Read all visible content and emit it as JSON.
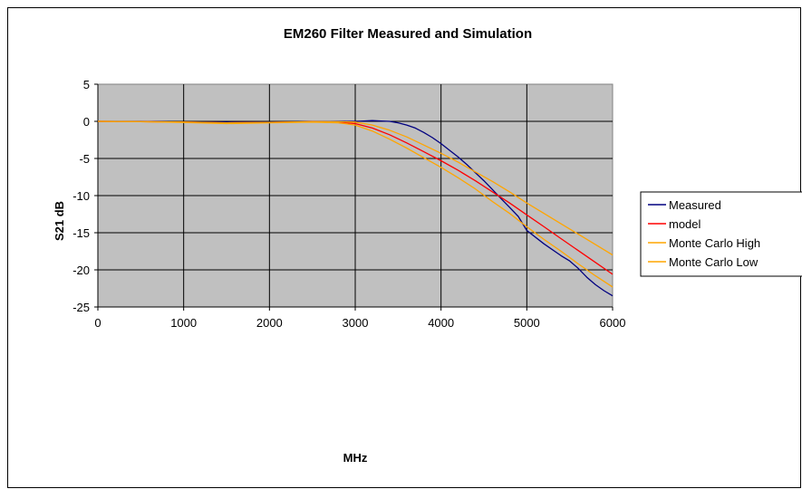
{
  "chart_data": {
    "type": "line",
    "title": "EM260 Filter Measured and Simulation",
    "xlabel": "MHz",
    "ylabel": "S21 dB",
    "xlim": [
      0,
      6000
    ],
    "ylim": [
      -25,
      5
    ],
    "x_ticks": [
      "0",
      "1000",
      "2000",
      "3000",
      "4000",
      "5000",
      "6000"
    ],
    "y_ticks": [
      "5",
      "0",
      "-5",
      "-10",
      "-15",
      "-20",
      "-25"
    ],
    "grid": true,
    "plot_background": "#c0c0c0",
    "legend_position": "right",
    "series": [
      {
        "name": "Measured",
        "color": "#000080",
        "x": [
          0,
          500,
          1000,
          1500,
          2000,
          2500,
          2800,
          3000,
          3100,
          3200,
          3300,
          3400,
          3500,
          3600,
          3700,
          3800,
          3900,
          4000,
          4100,
          4200,
          4300,
          4400,
          4500,
          4600,
          4700,
          4800,
          4900,
          5000,
          5200,
          5400,
          5500,
          5600,
          5700,
          5800,
          5900,
          6000
        ],
        "y": [
          0,
          0,
          -0.1,
          -0.1,
          -0.1,
          -0.05,
          0,
          0,
          0.05,
          0.1,
          0.05,
          0,
          -0.2,
          -0.5,
          -0.9,
          -1.5,
          -2.2,
          -3.0,
          -3.9,
          -4.8,
          -5.8,
          -6.9,
          -8.0,
          -9.2,
          -10.4,
          -11.6,
          -12.8,
          -14.7,
          -16.5,
          -18.1,
          -18.8,
          -19.8,
          -21.0,
          -22.0,
          -22.8,
          -23.5
        ]
      },
      {
        "name": "model",
        "color": "#ff0000",
        "x": [
          0,
          500,
          1000,
          1500,
          2000,
          2500,
          2800,
          3000,
          3200,
          3400,
          3600,
          3800,
          4000,
          4200,
          4400,
          4600,
          4800,
          5000,
          5200,
          5400,
          5600,
          5800,
          6000
        ],
        "y": [
          0,
          -0.05,
          -0.1,
          -0.2,
          -0.15,
          -0.05,
          -0.1,
          -0.3,
          -0.9,
          -1.8,
          -2.9,
          -4.1,
          -5.3,
          -6.6,
          -8.0,
          -9.5,
          -11.0,
          -12.6,
          -14.2,
          -15.8,
          -17.4,
          -19.0,
          -20.6
        ]
      },
      {
        "name": "Monte Carlo High",
        "color": "#ffa500",
        "x": [
          0,
          500,
          1000,
          1500,
          2000,
          2500,
          2800,
          3000,
          3200,
          3400,
          3600,
          3800,
          4000,
          4200,
          4400,
          4600,
          4800,
          5000,
          5200,
          5400,
          5600,
          5800,
          6000
        ],
        "y": [
          0,
          -0.05,
          -0.1,
          -0.2,
          -0.15,
          -0.05,
          -0.05,
          -0.1,
          -0.5,
          -1.2,
          -2.1,
          -3.2,
          -4.3,
          -5.5,
          -6.8,
          -8.1,
          -9.5,
          -11.0,
          -12.4,
          -13.8,
          -15.2,
          -16.6,
          -18.0
        ]
      },
      {
        "name": "Monte Carlo Low",
        "color": "#ffa500",
        "x": [
          0,
          500,
          1000,
          1500,
          2000,
          2500,
          2800,
          3000,
          3200,
          3400,
          3600,
          3800,
          4000,
          4200,
          4400,
          4600,
          4800,
          5000,
          5200,
          5400,
          5600,
          5800,
          6000
        ],
        "y": [
          0,
          -0.05,
          -0.15,
          -0.3,
          -0.2,
          -0.1,
          -0.2,
          -0.5,
          -1.3,
          -2.4,
          -3.6,
          -4.9,
          -6.2,
          -7.6,
          -9.1,
          -10.8,
          -12.4,
          -14.2,
          -15.9,
          -17.5,
          -19.2,
          -20.8,
          -22.3
        ]
      }
    ]
  }
}
